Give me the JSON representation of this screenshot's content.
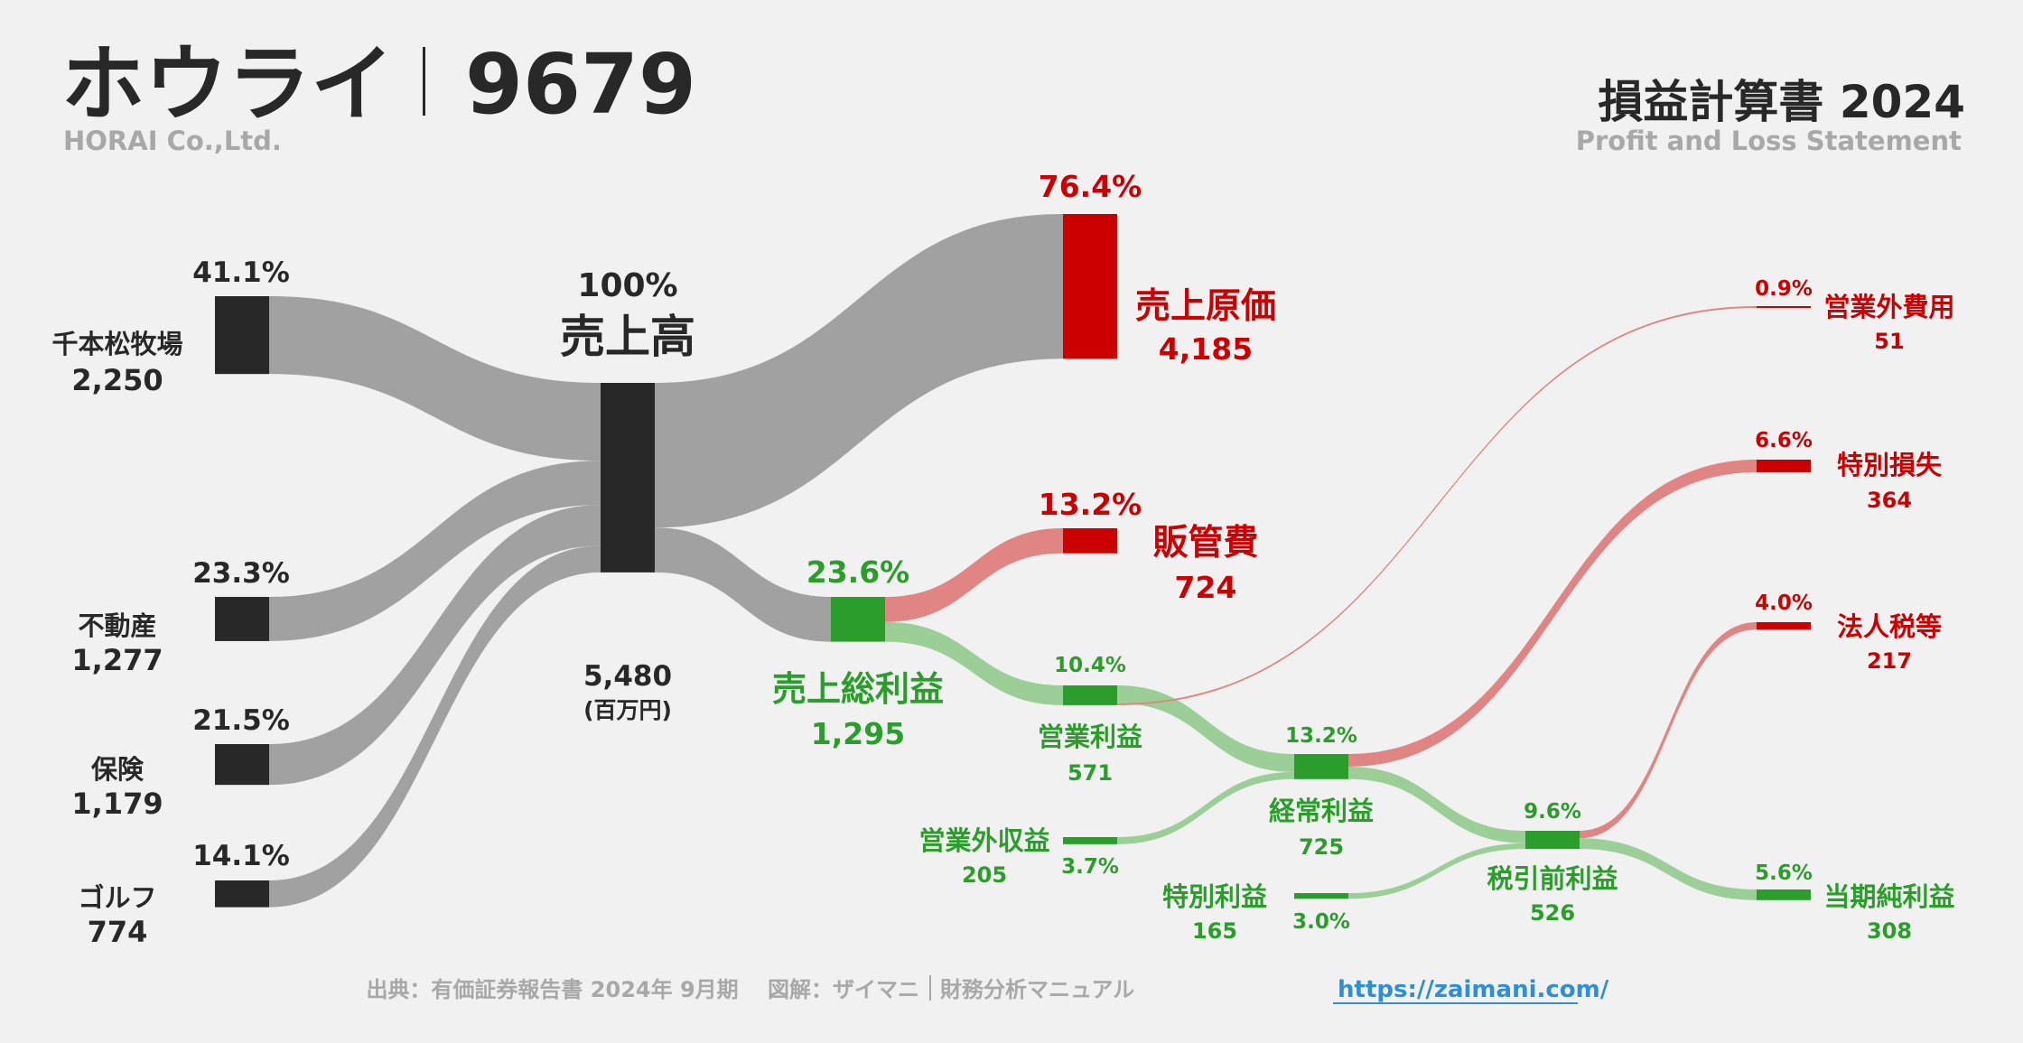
{
  "header": {
    "company_name": "ホウライ",
    "ticker": "9679",
    "company_en": "HORAI Co.,Ltd.",
    "statement_title": "損益計算書 2024",
    "statement_en": "Profit and Loss Statement"
  },
  "footer": {
    "source": "出典：有価証券報告書 2024年 9月期　 図解：ザイマニ",
    "brand": "財務分析マニュアル",
    "link": "https://zaimani.com/"
  },
  "colors": {
    "dark": "#282828",
    "gray_flow": "#a1a1a1",
    "red": "#cc0000",
    "red_flow": "#e08583",
    "green": "#2a9d2a",
    "green_flow": "#9ccf98",
    "muted": "#a8a8a8",
    "link": "#2e8fd6"
  },
  "chart_data": {
    "type": "sankey",
    "unit_label": "(百万円)",
    "nodes": {
      "seg1": {
        "label": "千本松牧場",
        "value": "2,250",
        "pct": "41.1%",
        "amount": 2250
      },
      "seg2": {
        "label": "不動産",
        "value": "1,277",
        "pct": "23.3%",
        "amount": 1277
      },
      "seg3": {
        "label": "保険",
        "value": "1,179",
        "pct": "21.5%",
        "amount": 1179
      },
      "seg4": {
        "label": "ゴルフ",
        "value": "774",
        "pct": "14.1%",
        "amount": 774
      },
      "revenue": {
        "label": "売上高",
        "value": "5,480",
        "pct": "100%",
        "amount": 5480
      },
      "cogs": {
        "label": "売上原価",
        "value": "4,185",
        "pct": "76.4%",
        "amount": 4185
      },
      "gross": {
        "label": "売上総利益",
        "value": "1,295",
        "pct": "23.6%",
        "amount": 1295
      },
      "sga": {
        "label": "販管費",
        "value": "724",
        "pct": "13.2%",
        "amount": 724
      },
      "opinc": {
        "label": "営業利益",
        "value": "571",
        "pct": "10.4%",
        "amount": 571
      },
      "nonop_inc": {
        "label": "営業外収益",
        "value": "205",
        "pct": "3.7%",
        "amount": 205
      },
      "nonop_exp": {
        "label": "営業外費用",
        "value": "51",
        "pct": "0.9%",
        "amount": 51
      },
      "ordinary": {
        "label": "経常利益",
        "value": "725",
        "pct": "13.2%",
        "amount": 725
      },
      "extra_gain": {
        "label": "特別利益",
        "value": "165",
        "pct": "3.0%",
        "amount": 165
      },
      "extra_loss": {
        "label": "特別損失",
        "value": "364",
        "pct": "6.6%",
        "amount": 364
      },
      "pretax": {
        "label": "税引前利益",
        "value": "526",
        "pct": "9.6%",
        "amount": 526
      },
      "tax": {
        "label": "法人税等",
        "value": "217",
        "pct": "4.0%",
        "amount": 217
      },
      "net": {
        "label": "当期純利益",
        "value": "308",
        "pct": "5.6%",
        "amount": 308
      }
    },
    "links": [
      {
        "from": "seg1",
        "to": "revenue",
        "value": 2250
      },
      {
        "from": "seg2",
        "to": "revenue",
        "value": 1277
      },
      {
        "from": "seg3",
        "to": "revenue",
        "value": 1179
      },
      {
        "from": "seg4",
        "to": "revenue",
        "value": 774
      },
      {
        "from": "revenue",
        "to": "cogs",
        "value": 4185
      },
      {
        "from": "revenue",
        "to": "gross",
        "value": 1295
      },
      {
        "from": "gross",
        "to": "sga",
        "value": 724
      },
      {
        "from": "gross",
        "to": "opinc",
        "value": 571
      },
      {
        "from": "opinc",
        "to": "ordinary",
        "value": 520
      },
      {
        "from": "opinc",
        "to": "nonop_exp",
        "value": 51
      },
      {
        "from": "nonop_inc",
        "to": "ordinary",
        "value": 205
      },
      {
        "from": "ordinary",
        "to": "extra_loss",
        "value": 364
      },
      {
        "from": "ordinary",
        "to": "pretax",
        "value": 361
      },
      {
        "from": "extra_gain",
        "to": "pretax",
        "value": 165
      },
      {
        "from": "pretax",
        "to": "tax",
        "value": 217
      },
      {
        "from": "pretax",
        "to": "net",
        "value": 308
      }
    ]
  }
}
